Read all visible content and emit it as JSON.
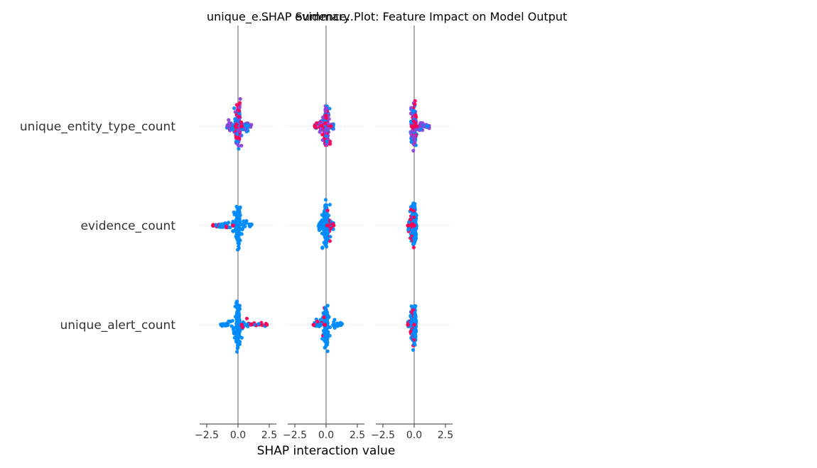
{
  "chart_data": {
    "type": "scatter",
    "title": "SHAP Summary Plot: Feature Impact on Model Output",
    "panel_titles": [
      "unique_e...",
      "evidence...",
      ""
    ],
    "xlabel": "SHAP interaction value",
    "features": [
      "unique_entity_type_count",
      "evidence_count",
      "unique_alert_count"
    ],
    "x_ticks": [
      -2.5,
      0.0,
      2.5
    ],
    "x_tick_labels": [
      "−2.5",
      "0.0",
      "2.5"
    ],
    "xlim": [
      -4.3,
      4.3
    ],
    "grid": "dotted horizontal row guides",
    "colors": {
      "low": "#008bfb",
      "mid": "#8d45d8",
      "high": "#ff0052",
      "zero_line": "#999999",
      "text": "#333333"
    },
    "panels": [
      {
        "column": "unique_entity_type_count",
        "rows": [
          {
            "feature": "unique_entity_type_count",
            "min": -0.9,
            "max": 1.1,
            "high_range": [
              -0.2,
              0.3
            ],
            "dominant": "mixed"
          },
          {
            "feature": "evidence_count",
            "min": -2.0,
            "max": 1.1,
            "high_range": [
              -2.0,
              -0.4
            ],
            "dominant": "low"
          },
          {
            "feature": "unique_alert_count",
            "min": -1.4,
            "max": 2.3,
            "high_range": [
              0.3,
              2.3
            ],
            "dominant": "low"
          }
        ]
      },
      {
        "column": "evidence_count",
        "rows": [
          {
            "feature": "unique_entity_type_count",
            "min": -0.9,
            "max": 0.6,
            "high_range": [
              -0.9,
              0.4
            ],
            "dominant": "mixed"
          },
          {
            "feature": "evidence_count",
            "min": -0.6,
            "max": 0.6,
            "high_range": [
              0.1,
              0.6
            ],
            "dominant": "low"
          },
          {
            "feature": "unique_alert_count",
            "min": -1.0,
            "max": 1.3,
            "high_range": [
              -1.0,
              -0.1
            ],
            "dominant": "low"
          }
        ]
      },
      {
        "column": "unique_alert_count",
        "rows": [
          {
            "feature": "unique_entity_type_count",
            "min": -0.3,
            "max": 1.2,
            "high_range": [
              -0.2,
              0.2
            ],
            "dominant": "mixed"
          },
          {
            "feature": "evidence_count",
            "min": -0.5,
            "max": 0.2,
            "high_range": [
              -0.5,
              0.0
            ],
            "dominant": "low"
          },
          {
            "feature": "unique_alert_count",
            "min": -0.5,
            "max": 0.2,
            "high_range": [
              -0.5,
              0.0
            ],
            "dominant": "low"
          }
        ]
      }
    ]
  }
}
